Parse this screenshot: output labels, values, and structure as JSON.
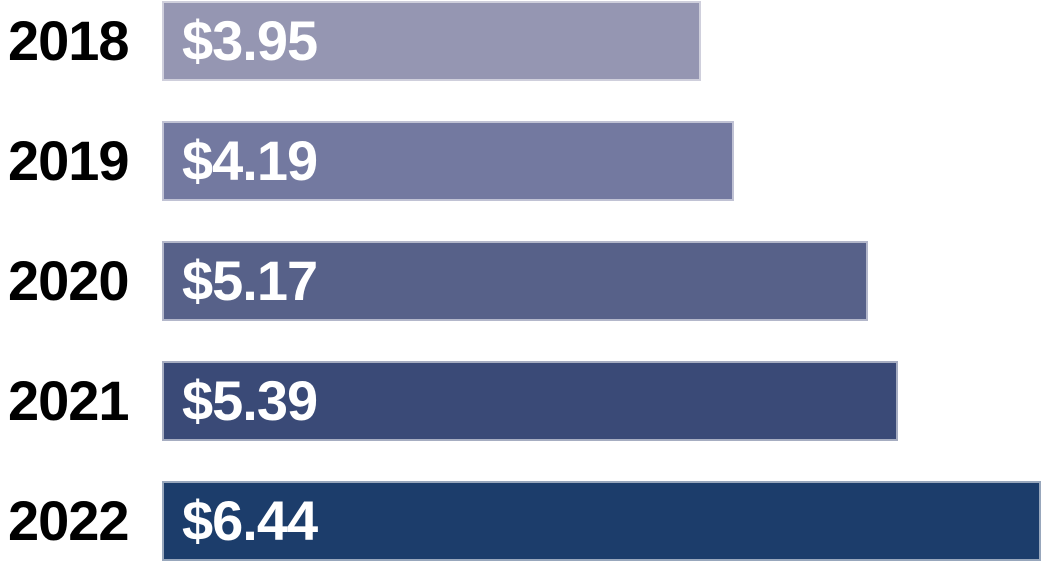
{
  "chart_data": {
    "type": "bar",
    "orientation": "horizontal",
    "title": "",
    "xlabel": "",
    "ylabel": "",
    "categories": [
      "2018",
      "2019",
      "2020",
      "2021",
      "2022"
    ],
    "values": [
      3.95,
      4.19,
      5.17,
      5.39,
      6.44
    ],
    "value_labels": [
      "$3.95",
      "$4.19",
      "$5.17",
      "$5.39",
      "$6.44"
    ],
    "value_prefix": "$",
    "xlim": [
      0,
      6.44
    ],
    "grid": false,
    "legend": false,
    "bar_colors": [
      "#9596B2",
      "#7379A0",
      "#576189",
      "#3A4A77",
      "#1C3D6B"
    ],
    "category_text_color": "#000000",
    "value_text_color": "#FFFFFF",
    "background_color": "#FFFFFF"
  }
}
